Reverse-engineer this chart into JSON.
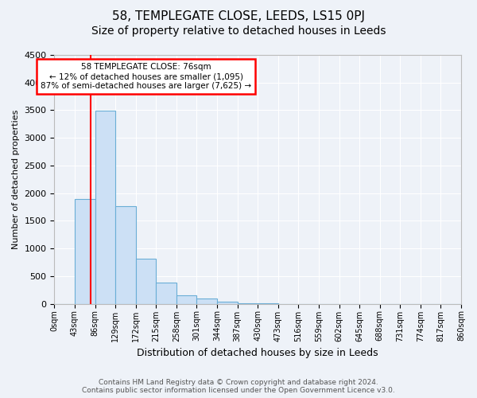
{
  "title": "58, TEMPLEGATE CLOSE, LEEDS, LS15 0PJ",
  "subtitle": "Size of property relative to detached houses in Leeds",
  "xlabel": "Distribution of detached houses by size in Leeds",
  "ylabel": "Number of detached properties",
  "footer": "Contains HM Land Registry data © Crown copyright and database right 2024.\nContains public sector information licensed under the Open Government Licence v3.0.",
  "bin_labels": [
    "0sqm",
    "43sqm",
    "86sqm",
    "129sqm",
    "172sqm",
    "215sqm",
    "258sqm",
    "301sqm",
    "344sqm",
    "387sqm",
    "430sqm",
    "473sqm",
    "516sqm",
    "559sqm",
    "602sqm",
    "645sqm",
    "688sqm",
    "731sqm",
    "774sqm",
    "817sqm",
    "860sqm"
  ],
  "bar_values": [
    0,
    1900,
    3490,
    1760,
    810,
    390,
    150,
    95,
    40,
    10,
    5,
    0,
    0,
    0,
    0,
    0,
    0,
    0,
    0,
    0
  ],
  "bar_color": "#cce0f5",
  "bar_edge_color": "#6aaed6",
  "red_line_x": 1.767,
  "annotation_text": "58 TEMPLEGATE CLOSE: 76sqm\n← 12% of detached houses are smaller (1,095)\n87% of semi-detached houses are larger (7,625) →",
  "annotation_box_color": "white",
  "annotation_box_edge": "red",
  "ylim": [
    0,
    4500
  ],
  "yticks": [
    0,
    500,
    1000,
    1500,
    2000,
    2500,
    3000,
    3500,
    4000,
    4500
  ],
  "background_color": "#eef2f8",
  "plot_bg_color": "#eef2f8",
  "grid_color": "white",
  "title_fontsize": 11,
  "subtitle_fontsize": 10
}
